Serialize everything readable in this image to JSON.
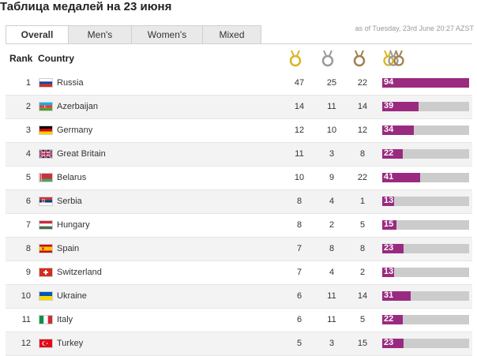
{
  "page_title": "Таблица медалей на 23 июня",
  "timestamp": "as of Tuesday, 23rd June 20:27 AZST",
  "tabs": [
    {
      "label": "Overall",
      "active": true
    },
    {
      "label": "Men's",
      "active": false
    },
    {
      "label": "Women's",
      "active": false
    },
    {
      "label": "Mixed",
      "active": false
    }
  ],
  "columns": {
    "rank": "Rank",
    "country": "Country"
  },
  "medal_icons": {
    "gold": "gold-medal-icon",
    "silver": "silver-medal-icon",
    "bronze": "bronze-medal-icon",
    "total": "all-medals-icon"
  },
  "colors": {
    "gold": "#d9b526",
    "silver": "#9a9a9a",
    "bronze": "#a0804f",
    "bar_fill": "#9a2a80",
    "bar_track": "#cccccc"
  },
  "max_total": 94,
  "rows": [
    {
      "rank": "1",
      "country": "Russia",
      "flag": "russia-flag-icon",
      "gold": "47",
      "silver": "25",
      "bronze": "22",
      "total": "94"
    },
    {
      "rank": "2",
      "country": "Azerbaijan",
      "flag": "azerbaijan-flag-icon",
      "gold": "14",
      "silver": "11",
      "bronze": "14",
      "total": "39"
    },
    {
      "rank": "3",
      "country": "Germany",
      "flag": "germany-flag-icon",
      "gold": "12",
      "silver": "10",
      "bronze": "12",
      "total": "34"
    },
    {
      "rank": "4",
      "country": "Great Britain",
      "flag": "great-britain-flag-icon",
      "gold": "11",
      "silver": "3",
      "bronze": "8",
      "total": "22"
    },
    {
      "rank": "5",
      "country": "Belarus",
      "flag": "belarus-flag-icon",
      "gold": "10",
      "silver": "9",
      "bronze": "22",
      "total": "41"
    },
    {
      "rank": "6",
      "country": "Serbia",
      "flag": "serbia-flag-icon",
      "gold": "8",
      "silver": "4",
      "bronze": "1",
      "total": "13"
    },
    {
      "rank": "7",
      "country": "Hungary",
      "flag": "hungary-flag-icon",
      "gold": "8",
      "silver": "2",
      "bronze": "5",
      "total": "15"
    },
    {
      "rank": "8",
      "country": "Spain",
      "flag": "spain-flag-icon",
      "gold": "7",
      "silver": "8",
      "bronze": "8",
      "total": "23"
    },
    {
      "rank": "9",
      "country": "Switzerland",
      "flag": "switzerland-flag-icon",
      "gold": "7",
      "silver": "4",
      "bronze": "2",
      "total": "13"
    },
    {
      "rank": "10",
      "country": "Ukraine",
      "flag": "ukraine-flag-icon",
      "gold": "6",
      "silver": "11",
      "bronze": "14",
      "total": "31"
    },
    {
      "rank": "11",
      "country": "Italy",
      "flag": "italy-flag-icon",
      "gold": "6",
      "silver": "11",
      "bronze": "5",
      "total": "22"
    },
    {
      "rank": "12",
      "country": "Turkey",
      "flag": "turkey-flag-icon",
      "gold": "5",
      "silver": "3",
      "bronze": "15",
      "total": "23"
    }
  ]
}
